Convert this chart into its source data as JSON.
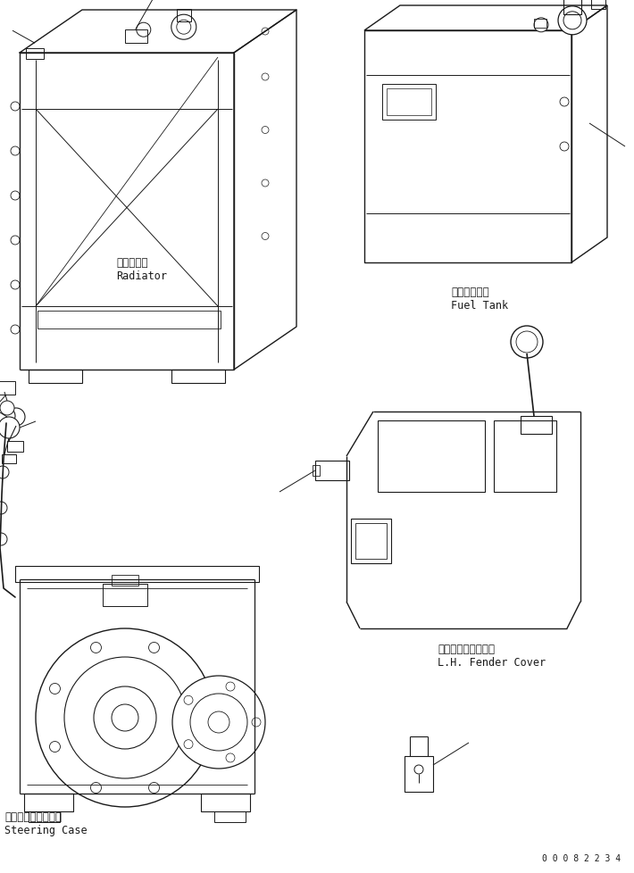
{
  "background_color": "#ffffff",
  "line_color": "#1a1a1a",
  "figure_width": 7.1,
  "figure_height": 9.79,
  "dpi": 100,
  "serial_number": "0 0 0 8 2 2 3 4",
  "labels": {
    "radiator_jp": "ラジエータ",
    "radiator_en": "Radiator",
    "fuel_tank_jp": "フェルタンク",
    "fuel_tank_en": "Fuel Tank",
    "fender_jp": "左　フェンダカバー",
    "fender_en": "L.H. Fender Cover",
    "steering_jp": "ステアリングケース",
    "steering_en": "Steering Case"
  }
}
